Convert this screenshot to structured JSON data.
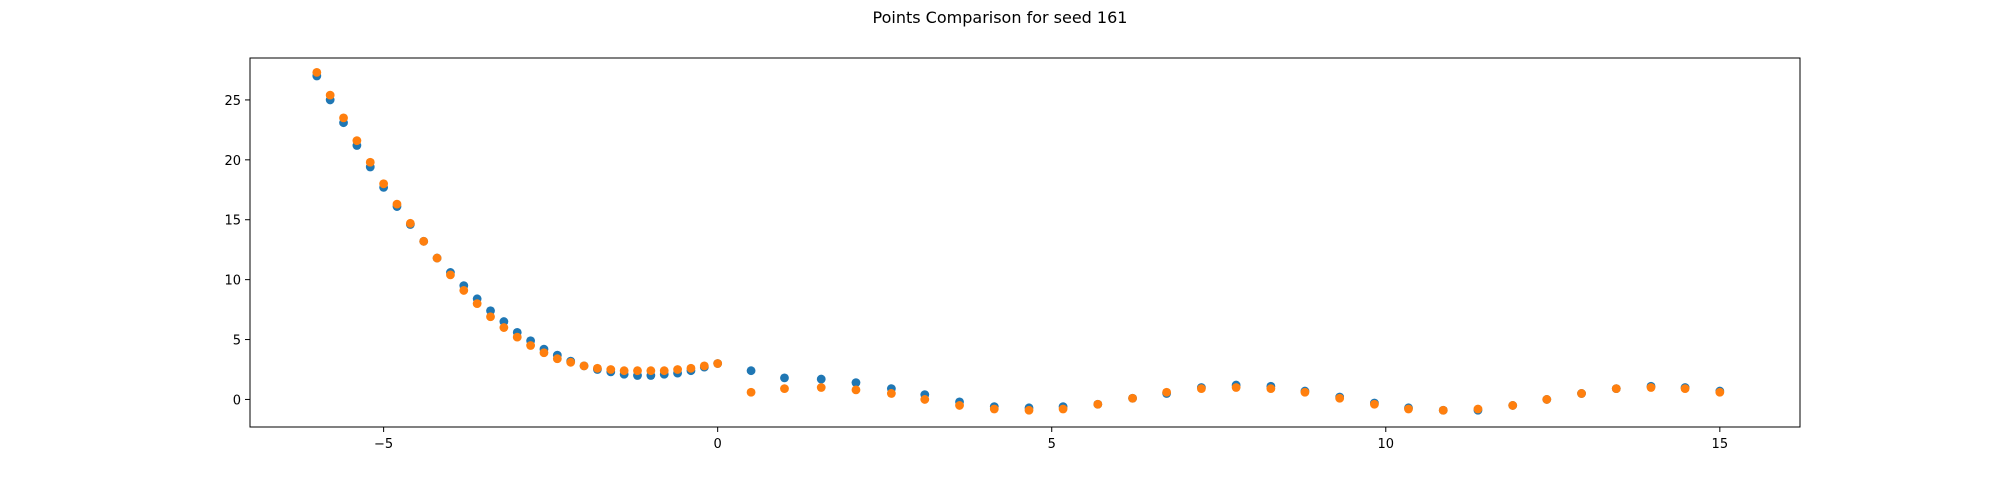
{
  "chart_data": {
    "type": "scatter",
    "title": "Points Comparison for seed 161",
    "xlabel": "",
    "ylabel": "",
    "xlim": [
      -7.0,
      16.2
    ],
    "ylim": [
      -2.3,
      28.5
    ],
    "xticks": [
      -5,
      0,
      5,
      10,
      15
    ],
    "yticks": [
      0,
      5,
      10,
      15,
      20,
      25
    ],
    "xtick_labels": [
      "−5",
      "0",
      "5",
      "10",
      "15"
    ],
    "ytick_labels": [
      "0",
      "5",
      "10",
      "15",
      "20",
      "25"
    ],
    "grid": false,
    "colors": {
      "series_a": "#1f77b4",
      "series_b": "#ff7f0e"
    },
    "series": [
      {
        "name": "series_a",
        "color": "#1f77b4",
        "points": [
          [
            -6.0,
            27.0
          ],
          [
            -5.8,
            25.0
          ],
          [
            -5.6,
            23.1
          ],
          [
            -5.4,
            21.2
          ],
          [
            -5.2,
            19.4
          ],
          [
            -5.0,
            17.7
          ],
          [
            -4.8,
            16.1
          ],
          [
            -4.6,
            14.6
          ],
          [
            -4.4,
            13.2
          ],
          [
            -4.2,
            11.8
          ],
          [
            -4.0,
            10.6
          ],
          [
            -3.8,
            9.5
          ],
          [
            -3.6,
            8.4
          ],
          [
            -3.4,
            7.4
          ],
          [
            -3.2,
            6.5
          ],
          [
            -3.0,
            5.6
          ],
          [
            -2.8,
            4.9
          ],
          [
            -2.6,
            4.2
          ],
          [
            -2.4,
            3.7
          ],
          [
            -2.2,
            3.2
          ],
          [
            -2.0,
            2.8
          ],
          [
            -1.8,
            2.5
          ],
          [
            -1.6,
            2.3
          ],
          [
            -1.4,
            2.1
          ],
          [
            -1.2,
            2.0
          ],
          [
            -1.0,
            2.0
          ],
          [
            -0.8,
            2.1
          ],
          [
            -0.6,
            2.2
          ],
          [
            -0.4,
            2.4
          ],
          [
            -0.2,
            2.7
          ],
          [
            0.0,
            3.0
          ],
          [
            0.5,
            2.4
          ],
          [
            1.0,
            1.8
          ],
          [
            1.55,
            1.7
          ],
          [
            2.07,
            1.4
          ],
          [
            2.6,
            0.9
          ],
          [
            3.1,
            0.4
          ],
          [
            3.62,
            -0.2
          ],
          [
            4.14,
            -0.6
          ],
          [
            4.66,
            -0.7
          ],
          [
            5.17,
            -0.6
          ],
          [
            5.69,
            -0.4
          ],
          [
            6.21,
            0.1
          ],
          [
            6.72,
            0.5
          ],
          [
            7.24,
            1.0
          ],
          [
            7.76,
            1.2
          ],
          [
            8.28,
            1.1
          ],
          [
            8.79,
            0.7
          ],
          [
            9.31,
            0.2
          ],
          [
            9.83,
            -0.3
          ],
          [
            10.34,
            -0.7
          ],
          [
            10.86,
            -0.9
          ],
          [
            11.38,
            -0.9
          ],
          [
            11.9,
            -0.5
          ],
          [
            12.41,
            0.0
          ],
          [
            12.93,
            0.5
          ],
          [
            13.45,
            0.9
          ],
          [
            13.97,
            1.1
          ],
          [
            14.48,
            1.0
          ],
          [
            15.0,
            0.7
          ]
        ]
      },
      {
        "name": "series_b",
        "color": "#ff7f0e",
        "points": [
          [
            -6.0,
            27.3
          ],
          [
            -5.8,
            25.4
          ],
          [
            -5.6,
            23.5
          ],
          [
            -5.4,
            21.6
          ],
          [
            -5.2,
            19.8
          ],
          [
            -5.0,
            18.0
          ],
          [
            -4.8,
            16.3
          ],
          [
            -4.6,
            14.7
          ],
          [
            -4.4,
            13.2
          ],
          [
            -4.2,
            11.8
          ],
          [
            -4.0,
            10.4
          ],
          [
            -3.8,
            9.1
          ],
          [
            -3.6,
            8.0
          ],
          [
            -3.4,
            6.9
          ],
          [
            -3.2,
            6.0
          ],
          [
            -3.0,
            5.2
          ],
          [
            -2.8,
            4.5
          ],
          [
            -2.6,
            3.9
          ],
          [
            -2.4,
            3.4
          ],
          [
            -2.2,
            3.1
          ],
          [
            -2.0,
            2.8
          ],
          [
            -1.8,
            2.6
          ],
          [
            -1.6,
            2.5
          ],
          [
            -1.4,
            2.4
          ],
          [
            -1.2,
            2.4
          ],
          [
            -1.0,
            2.4
          ],
          [
            -0.8,
            2.4
          ],
          [
            -0.6,
            2.5
          ],
          [
            -0.4,
            2.6
          ],
          [
            -0.2,
            2.8
          ],
          [
            0.0,
            3.0
          ],
          [
            0.5,
            0.6
          ],
          [
            1.0,
            0.9
          ],
          [
            1.55,
            1.0
          ],
          [
            2.07,
            0.8
          ],
          [
            2.6,
            0.5
          ],
          [
            3.1,
            0.0
          ],
          [
            3.62,
            -0.5
          ],
          [
            4.14,
            -0.8
          ],
          [
            4.66,
            -0.9
          ],
          [
            5.17,
            -0.8
          ],
          [
            5.69,
            -0.4
          ],
          [
            6.21,
            0.1
          ],
          [
            6.72,
            0.6
          ],
          [
            7.24,
            0.9
          ],
          [
            7.76,
            1.0
          ],
          [
            8.28,
            0.9
          ],
          [
            8.79,
            0.6
          ],
          [
            9.31,
            0.1
          ],
          [
            9.83,
            -0.4
          ],
          [
            10.34,
            -0.8
          ],
          [
            10.86,
            -0.9
          ],
          [
            11.38,
            -0.8
          ],
          [
            11.9,
            -0.5
          ],
          [
            12.41,
            0.0
          ],
          [
            12.93,
            0.5
          ],
          [
            13.45,
            0.9
          ],
          [
            13.97,
            1.0
          ],
          [
            14.48,
            0.9
          ],
          [
            15.0,
            0.6
          ]
        ]
      }
    ]
  }
}
